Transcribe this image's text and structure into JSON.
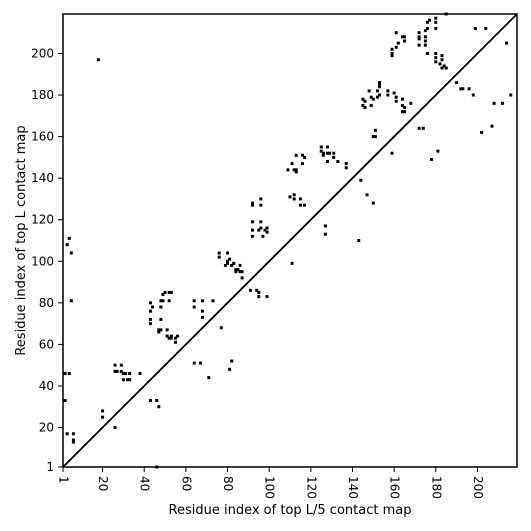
{
  "chart_data": {
    "type": "scatter",
    "xlabel": "Residue index of top L/5 contact map",
    "ylabel": "Residue index of top L contact map",
    "xlim": [
      1,
      219
    ],
    "ylim": [
      1,
      219
    ],
    "xticks": [
      1,
      20,
      40,
      60,
      80,
      100,
      120,
      140,
      160,
      180,
      200
    ],
    "yticks": [
      1,
      20,
      40,
      60,
      80,
      100,
      120,
      140,
      160,
      180,
      200
    ],
    "marker": "small-square",
    "color": "#000000",
    "diagonal": true,
    "grid": false,
    "legend": "none",
    "points": [
      [
        2,
        33
      ],
      [
        2,
        46
      ],
      [
        3,
        108
      ],
      [
        3,
        17
      ],
      [
        4,
        111
      ],
      [
        5,
        104
      ],
      [
        4,
        46
      ],
      [
        5,
        81
      ],
      [
        6,
        17
      ],
      [
        6,
        13
      ],
      [
        6,
        14
      ],
      [
        18,
        197
      ],
      [
        20,
        25
      ],
      [
        20,
        28
      ],
      [
        26,
        20
      ],
      [
        26,
        47
      ],
      [
        26,
        50
      ],
      [
        27,
        47
      ],
      [
        29,
        50
      ],
      [
        29,
        47
      ],
      [
        30,
        43
      ],
      [
        30,
        46
      ],
      [
        31,
        46
      ],
      [
        32,
        43
      ],
      [
        33,
        46
      ],
      [
        33,
        43
      ],
      [
        38,
        46
      ],
      [
        43,
        33
      ],
      [
        43,
        70
      ],
      [
        43,
        72
      ],
      [
        43,
        76
      ],
      [
        43,
        80
      ],
      [
        44,
        78
      ],
      [
        46,
        33
      ],
      [
        46,
        1
      ],
      [
        47,
        30
      ],
      [
        47,
        66
      ],
      [
        47,
        67
      ],
      [
        48,
        72
      ],
      [
        48,
        78
      ],
      [
        48,
        81
      ],
      [
        48,
        67
      ],
      [
        49,
        84
      ],
      [
        49,
        81
      ],
      [
        50,
        85
      ],
      [
        51,
        64
      ],
      [
        51,
        67
      ],
      [
        52,
        63
      ],
      [
        52,
        81
      ],
      [
        52,
        85
      ],
      [
        53,
        63
      ],
      [
        53,
        64
      ],
      [
        53,
        85
      ],
      [
        55,
        61
      ],
      [
        55,
        63
      ],
      [
        56,
        64
      ],
      [
        64,
        51
      ],
      [
        64,
        78
      ],
      [
        64,
        81
      ],
      [
        67,
        51
      ],
      [
        68,
        81
      ],
      [
        68,
        76
      ],
      [
        68,
        73
      ],
      [
        71,
        44
      ],
      [
        73,
        81
      ],
      [
        76,
        102
      ],
      [
        76,
        104
      ],
      [
        77,
        68
      ],
      [
        79,
        98
      ],
      [
        80,
        100
      ],
      [
        80,
        99
      ],
      [
        80,
        104
      ],
      [
        81,
        48
      ],
      [
        81,
        101
      ],
      [
        82,
        52
      ],
      [
        82,
        98
      ],
      [
        83,
        99
      ],
      [
        84,
        96
      ],
      [
        84,
        95
      ],
      [
        85,
        96
      ],
      [
        86,
        95
      ],
      [
        86,
        98
      ],
      [
        87,
        95
      ],
      [
        87,
        92
      ],
      [
        91,
        86
      ],
      [
        92,
        128
      ],
      [
        92,
        127
      ],
      [
        92,
        119
      ],
      [
        92,
        115
      ],
      [
        92,
        112
      ],
      [
        94,
        86
      ],
      [
        95,
        85
      ],
      [
        95,
        83
      ],
      [
        95,
        115
      ],
      [
        96,
        130
      ],
      [
        96,
        127
      ],
      [
        96,
        119
      ],
      [
        96,
        116
      ],
      [
        97,
        112
      ],
      [
        98,
        115
      ],
      [
        99,
        83
      ],
      [
        99,
        114
      ],
      [
        99,
        116
      ],
      [
        109,
        144
      ],
      [
        110,
        131
      ],
      [
        111,
        99
      ],
      [
        111,
        147
      ],
      [
        112,
        144
      ],
      [
        112,
        130
      ],
      [
        112,
        132
      ],
      [
        113,
        143
      ],
      [
        113,
        144
      ],
      [
        113,
        151
      ],
      [
        115,
        127
      ],
      [
        115,
        130
      ],
      [
        116,
        147
      ],
      [
        116,
        151
      ],
      [
        117,
        127
      ],
      [
        117,
        150
      ],
      [
        125,
        153
      ],
      [
        125,
        155
      ],
      [
        126,
        151
      ],
      [
        126,
        152
      ],
      [
        127,
        117
      ],
      [
        127,
        113
      ],
      [
        128,
        155
      ],
      [
        128,
        148
      ],
      [
        128,
        152
      ],
      [
        129,
        152
      ],
      [
        131,
        152
      ],
      [
        131,
        150
      ],
      [
        133,
        148
      ],
      [
        137,
        147
      ],
      [
        137,
        145
      ],
      [
        143,
        110
      ],
      [
        144,
        139
      ],
      [
        145,
        175
      ],
      [
        145,
        178
      ],
      [
        146,
        174
      ],
      [
        146,
        177
      ],
      [
        147,
        132
      ],
      [
        148,
        182
      ],
      [
        149,
        179
      ],
      [
        149,
        175
      ],
      [
        150,
        128
      ],
      [
        150,
        160
      ],
      [
        150,
        178
      ],
      [
        151,
        160
      ],
      [
        151,
        163
      ],
      [
        152,
        179
      ],
      [
        152,
        182
      ],
      [
        153,
        184
      ],
      [
        153,
        185
      ],
      [
        153,
        186
      ],
      [
        153,
        180
      ],
      [
        157,
        180
      ],
      [
        157,
        182
      ],
      [
        159,
        200
      ],
      [
        159,
        199
      ],
      [
        159,
        152
      ],
      [
        159,
        202
      ],
      [
        160,
        181
      ],
      [
        161,
        179
      ],
      [
        161,
        210
      ],
      [
        161,
        203
      ],
      [
        161,
        177
      ],
      [
        162,
        205
      ],
      [
        164,
        178
      ],
      [
        164,
        175
      ],
      [
        164,
        172
      ],
      [
        164,
        208
      ],
      [
        165,
        172
      ],
      [
        165,
        206
      ],
      [
        165,
        208
      ],
      [
        165,
        174
      ],
      [
        168,
        176
      ],
      [
        172,
        164
      ],
      [
        172,
        208
      ],
      [
        172,
        207
      ],
      [
        172,
        204
      ],
      [
        172,
        210
      ],
      [
        174,
        164
      ],
      [
        175,
        206
      ],
      [
        175,
        204
      ],
      [
        175,
        208
      ],
      [
        175,
        211
      ],
      [
        176,
        200
      ],
      [
        176,
        212
      ],
      [
        176,
        215
      ],
      [
        177,
        216
      ],
      [
        178,
        149
      ],
      [
        180,
        215
      ],
      [
        180,
        217
      ],
      [
        180,
        200
      ],
      [
        180,
        198
      ],
      [
        180,
        212
      ],
      [
        180,
        196
      ],
      [
        181,
        153
      ],
      [
        182,
        195
      ],
      [
        183,
        199
      ],
      [
        183,
        193
      ],
      [
        183,
        197
      ],
      [
        184,
        194
      ],
      [
        185,
        193
      ],
      [
        185,
        219
      ],
      [
        190,
        186
      ],
      [
        192,
        183
      ],
      [
        193,
        183
      ],
      [
        196,
        183
      ],
      [
        198,
        180
      ],
      [
        199,
        212
      ],
      [
        202,
        162
      ],
      [
        204,
        212
      ],
      [
        207,
        165
      ],
      [
        208,
        176
      ],
      [
        212,
        176
      ],
      [
        214,
        205
      ],
      [
        216,
        180
      ]
    ]
  }
}
